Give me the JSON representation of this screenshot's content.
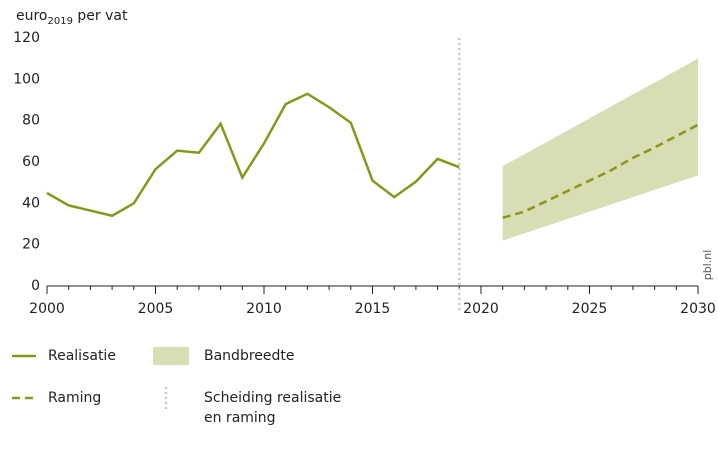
{
  "chart_data": {
    "type": "line",
    "y_label": {
      "main": "euro",
      "sub": "2019",
      "rest": " per vat"
    },
    "xlim": [
      2000,
      2030
    ],
    "xticks": [
      2000,
      2005,
      2010,
      2015,
      2020,
      2025,
      2030
    ],
    "xminor_ticks": [
      2000,
      2001,
      2002,
      2003,
      2004,
      2005,
      2006,
      2007,
      2008,
      2009,
      2010,
      2011,
      2012,
      2013,
      2014,
      2015,
      2016,
      2017,
      2018,
      2019,
      2020,
      2021,
      2022,
      2023,
      2024,
      2025,
      2026,
      2027,
      2028,
      2029,
      2030
    ],
    "ylim": [
      0,
      120
    ],
    "yticks": [
      0,
      20,
      40,
      60,
      80,
      100,
      120
    ],
    "grid": false,
    "series": [
      {
        "name": "Realisatie",
        "color": "#87971c",
        "dash": false,
        "x": [
          2000,
          2001,
          2002,
          2003,
          2004,
          2005,
          2006,
          2007,
          2008,
          2009,
          2010,
          2011,
          2012,
          2013,
          2014,
          2015,
          2016,
          2017,
          2018,
          2019
        ],
        "values": [
          45,
          39,
          36.5,
          34,
          40,
          56.5,
          65.5,
          64.5,
          78.5,
          52.5,
          69,
          88,
          93,
          86.5,
          79,
          51,
          43,
          50.5,
          61.5,
          57.5
        ]
      },
      {
        "name": "Raming",
        "color": "#87971c",
        "dash": true,
        "x": [
          2021,
          2022,
          2023,
          2024,
          2025,
          2026,
          2027,
          2028,
          2029,
          2030
        ],
        "values": [
          33,
          36,
          41,
          46,
          51,
          56,
          62,
          67,
          72.5,
          78
        ]
      }
    ],
    "band": {
      "name": "Bandbreedte",
      "color": "#d8ddb3",
      "x": [
        2021,
        2030
      ],
      "lower": [
        22,
        53.5
      ],
      "upper": [
        58,
        110
      ]
    },
    "separator": {
      "name": [
        "Scheiding realisatie",
        "en raming"
      ],
      "x": 2019,
      "color": "#c8c8c8"
    },
    "watermark": "pbl.nl"
  }
}
